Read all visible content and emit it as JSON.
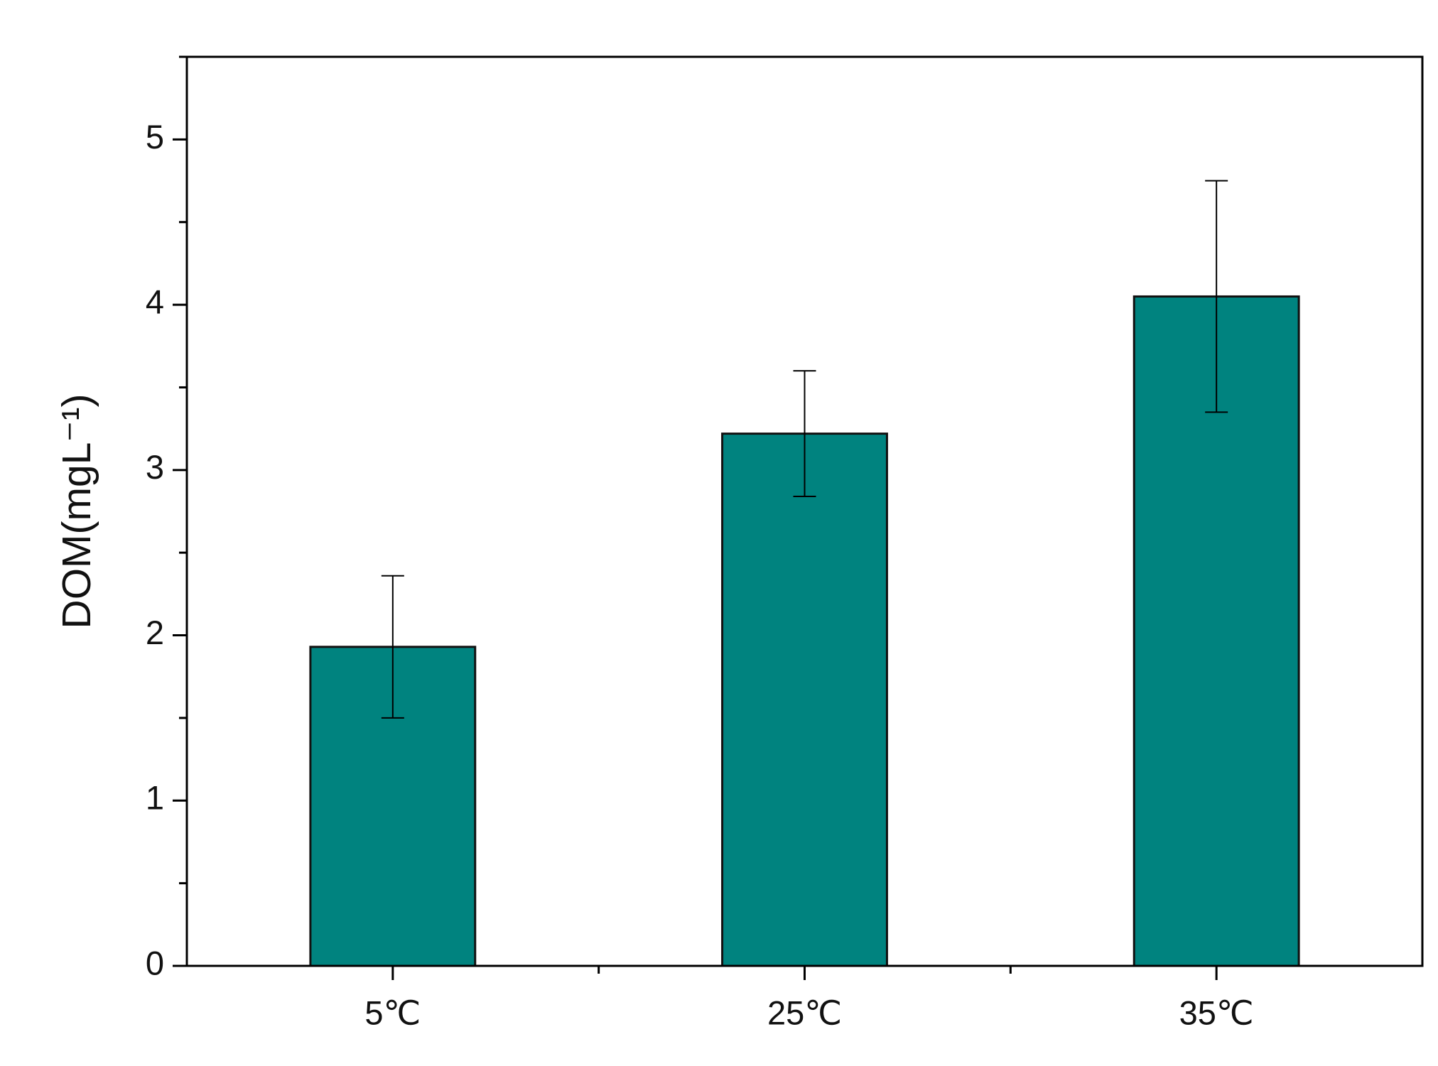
{
  "chart_data": {
    "type": "bar",
    "ylabel": "DOM(mgL⁻¹)",
    "categories": [
      "5℃",
      "25℃",
      "35℃"
    ],
    "values": [
      1.93,
      3.22,
      4.05
    ],
    "errors": [
      0.43,
      0.38,
      0.7
    ],
    "color": "#00837f",
    "ylim": [
      0,
      5.5
    ],
    "yticks": [
      0,
      1,
      2,
      3,
      4,
      5
    ],
    "yminorticks": [
      0.5,
      1.5,
      2.5,
      3.5,
      4.5,
      5.5
    ]
  }
}
